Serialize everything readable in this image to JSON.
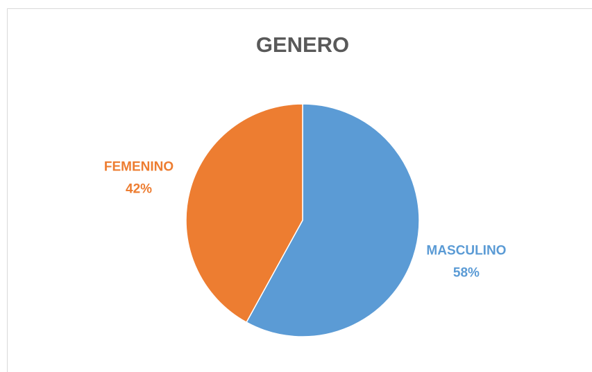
{
  "chart_data": {
    "type": "pie",
    "title": "GENERO",
    "categories": [
      "MASCULINO",
      "FEMENINO"
    ],
    "values": [
      58,
      42
    ],
    "value_labels": [
      "58%",
      "42%"
    ],
    "colors": [
      "#5b9bd5",
      "#ed7d31"
    ]
  }
}
